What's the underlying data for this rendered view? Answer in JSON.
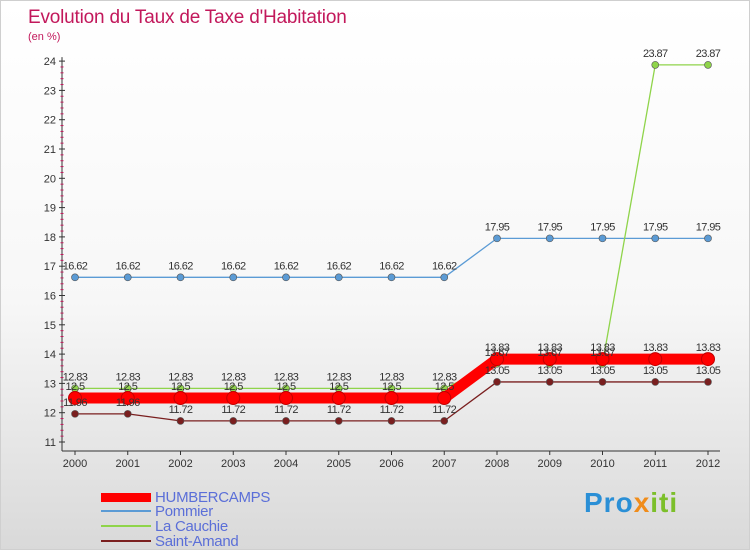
{
  "title": "Evolution du Taux de Taxe d'Habitation",
  "subtitle": "(en %)",
  "chart_data": {
    "type": "line",
    "title": "Evolution du Taux de Taxe d'Habitation",
    "ylabel": "(en %)",
    "xlabel": "",
    "x": [
      "2000",
      "2001",
      "2002",
      "2003",
      "2004",
      "2005",
      "2006",
      "2007",
      "2008",
      "2009",
      "2010",
      "2011",
      "2012"
    ],
    "ylim": [
      11,
      24
    ],
    "yticks": [
      11,
      12,
      13,
      14,
      15,
      16,
      17,
      18,
      19,
      20,
      21,
      22,
      23,
      24
    ],
    "grid": false,
    "legend": "bottom-left",
    "series": [
      {
        "name": "HUMBERCAMPS",
        "color": "#ff0000",
        "values": [
          12.5,
          12.5,
          12.5,
          12.5,
          12.5,
          12.5,
          12.5,
          12.5,
          13.83,
          13.83,
          13.83,
          13.83,
          13.83
        ],
        "labels": [
          "12.5",
          "12.5",
          "12.5",
          "12.5",
          "12.5",
          "12.5",
          "12.5",
          "12.5",
          "13.83",
          "13.83",
          "13.83",
          "13.83",
          "13.83"
        ]
      },
      {
        "name": "Pommier",
        "color": "#5b9bd5",
        "values": [
          16.62,
          16.62,
          16.62,
          16.62,
          16.62,
          16.62,
          16.62,
          16.62,
          17.95,
          17.95,
          17.95,
          17.95,
          17.95
        ],
        "labels": [
          "16.62",
          "16.62",
          "16.62",
          "16.62",
          "16.62",
          "16.62",
          "16.62",
          "16.62",
          "17.95",
          "17.95",
          "17.95",
          "17.95",
          "17.95"
        ]
      },
      {
        "name": "La Cauchie",
        "color": "#8fd44a",
        "values": [
          12.83,
          12.83,
          12.83,
          12.83,
          12.83,
          12.83,
          12.83,
          12.83,
          13.67,
          13.67,
          13.67,
          23.87,
          23.87
        ],
        "labels": [
          "12.83",
          "12.83",
          "12.83",
          "12.83",
          "12.83",
          "12.83",
          "12.83",
          "12.83",
          "13.67",
          "13.67",
          "13.67",
          "23.87",
          "23.87"
        ]
      },
      {
        "name": "Saint-Amand",
        "color": "#7a1f1f",
        "values": [
          11.96,
          11.96,
          11.72,
          11.72,
          11.72,
          11.72,
          11.72,
          11.72,
          13.05,
          13.05,
          13.05,
          13.05,
          13.05
        ],
        "labels": [
          "11.96",
          "11.96",
          "11.72",
          "11.72",
          "11.72",
          "11.72",
          "11.72",
          "11.72",
          "13.05",
          "13.05",
          "13.05",
          "13.05",
          "13.05"
        ]
      }
    ]
  },
  "logo": {
    "p1": "Pro",
    "p2": "x",
    "p3": "iti"
  }
}
